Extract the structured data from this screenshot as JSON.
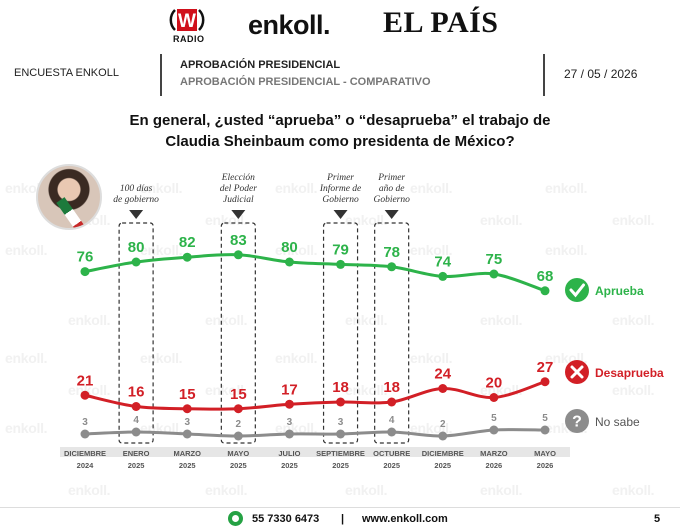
{
  "logos": {
    "w_letter": "W",
    "w_sub": "RADIO",
    "enkoll": "enkoll.",
    "pais": "EL PAÍS"
  },
  "header": {
    "left_label": "ENCUESTA ENKOLL",
    "title": "APROBACIÓN PRESIDENCIAL",
    "subtitle": "APROBACIÓN PRESIDENCIAL - COMPARATIVO",
    "date": "27 / 05 / 2026"
  },
  "question": {
    "line1": "En general, ¿usted “aprueba” o “desaprueba” el trabajo de",
    "line2": "Claudia Sheinbaum como presidenta de México?"
  },
  "watermark": "enkoll.",
  "colors": {
    "aprueba": "#2db34a",
    "desaprueba": "#d21f26",
    "no_sabe": "#8c8c8c"
  },
  "chart_data": {
    "type": "line",
    "title": "",
    "xlabel": "",
    "ylabel": "",
    "categories": [
      [
        "DICIEMBRE",
        "2024"
      ],
      [
        "ENERO",
        "2025"
      ],
      [
        "MARZO",
        "2025"
      ],
      [
        "MAYO",
        "2025"
      ],
      [
        "JULIO",
        "2025"
      ],
      [
        "SEPTIEMBRE",
        "2025"
      ],
      [
        "OCTUBRE",
        "2025"
      ],
      [
        "DICIEMBRE",
        "2025"
      ],
      [
        "MARZO",
        "2026"
      ],
      [
        "MAYO",
        "2026"
      ]
    ],
    "series": [
      {
        "key": "aprueba",
        "name": "Aprueba",
        "values": [
          76,
          80,
          82,
          83,
          80,
          79,
          78,
          74,
          75,
          68
        ]
      },
      {
        "key": "desaprueba",
        "name": "Desaprueba",
        "values": [
          21,
          16,
          15,
          15,
          17,
          18,
          18,
          24,
          20,
          27
        ]
      },
      {
        "key": "no_sabe",
        "name": "No sabe",
        "values": [
          3,
          4,
          3,
          2,
          3,
          3,
          4,
          2,
          5,
          5
        ]
      }
    ],
    "annotations": [
      {
        "index": 1,
        "lines": [
          "100 días",
          "de gobierno"
        ]
      },
      {
        "index": 3,
        "lines": [
          "Elección",
          "del Poder",
          "Judicial"
        ]
      },
      {
        "index": 5,
        "lines": [
          "Primer",
          "Informe de",
          "Gobierno"
        ]
      },
      {
        "index": 6,
        "lines": [
          "Primer",
          "año de",
          "Gobierno"
        ]
      }
    ],
    "legend": "right"
  },
  "footer": {
    "phone": "55 7330 6473",
    "separator": "|",
    "web": "www.enkoll.com",
    "page": "5"
  }
}
